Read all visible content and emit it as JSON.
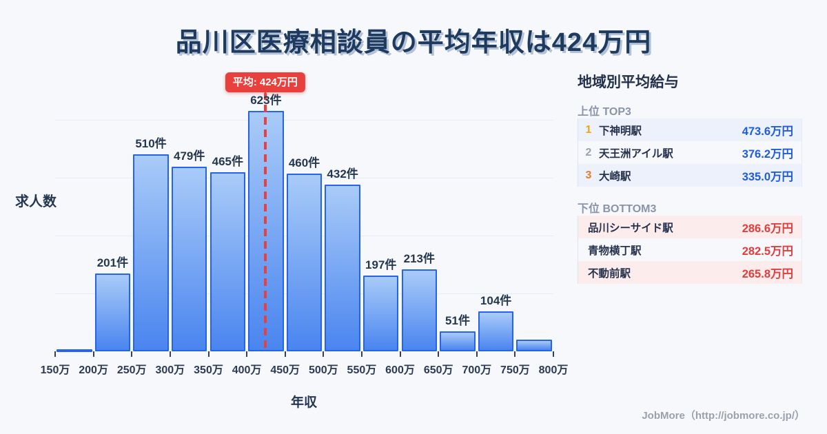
{
  "title": "品川区医療相談員の平均年収は424万円",
  "chart_data": {
    "type": "bar",
    "title": "品川区医療相談員の平均年収は424万円",
    "xlabel": "年収",
    "ylabel": "求人数",
    "unit_suffix": "件",
    "x_start": 150,
    "x_interval": 50,
    "x_tick_labels": [
      "150万",
      "200万",
      "250万",
      "300万",
      "350万",
      "400万",
      "450万",
      "500万",
      "550万",
      "600万",
      "650万",
      "700万",
      "750万",
      "800万"
    ],
    "bins": [
      {
        "range": [
          150,
          200
        ],
        "count": 5,
        "label": ""
      },
      {
        "range": [
          200,
          250
        ],
        "count": 201,
        "label": "201件"
      },
      {
        "range": [
          250,
          300
        ],
        "count": 510,
        "label": "510件"
      },
      {
        "range": [
          300,
          350
        ],
        "count": 479,
        "label": "479件"
      },
      {
        "range": [
          350,
          400
        ],
        "count": 465,
        "label": "465件"
      },
      {
        "range": [
          400,
          450
        ],
        "count": 623,
        "label": "623件"
      },
      {
        "range": [
          450,
          500
        ],
        "count": 460,
        "label": "460件"
      },
      {
        "range": [
          500,
          550
        ],
        "count": 432,
        "label": "432件"
      },
      {
        "range": [
          550,
          600
        ],
        "count": 197,
        "label": "197件"
      },
      {
        "range": [
          600,
          650
        ],
        "count": 213,
        "label": "213件"
      },
      {
        "range": [
          650,
          700
        ],
        "count": 51,
        "label": "51件"
      },
      {
        "range": [
          700,
          750
        ],
        "count": 104,
        "label": "104件"
      },
      {
        "range": [
          750,
          800
        ],
        "count": 30,
        "label": ""
      }
    ],
    "average": {
      "value": 424,
      "label": "平均: 424万円"
    },
    "ylim": [
      0,
      650
    ],
    "gridline_values": [
      150,
      300,
      450,
      600
    ],
    "grid": "horizontal"
  },
  "sidebar": {
    "title": "地域別平均給与",
    "top3": {
      "heading": "上位 TOP3",
      "rows": [
        {
          "rank": "1",
          "station": "下神明駅",
          "value": "473.6万円"
        },
        {
          "rank": "2",
          "station": "天王洲アイル駅",
          "value": "376.2万円"
        },
        {
          "rank": "3",
          "station": "大崎駅",
          "value": "335.0万円"
        }
      ],
      "rank_colors": [
        "#f0a60e",
        "#9aa2af",
        "#e07e2b"
      ],
      "value_color": "#1d5bdf",
      "row_highlight": "#ecf1fb"
    },
    "bottom3": {
      "heading": "下位 BOTTOM3",
      "rows": [
        {
          "station": "品川シーサイド駅",
          "value": "286.6万円"
        },
        {
          "station": "青物横丁駅",
          "value": "282.5万円"
        },
        {
          "station": "不動前駅",
          "value": "265.8万円"
        }
      ],
      "value_color": "#e23c3c",
      "row_highlight": "#fdecec"
    }
  },
  "footer": {
    "credit": "JobMore（http://jobmore.co.jp/）"
  },
  "colors": {
    "background": "#f7f8fb",
    "title_text": "#1f3a5f",
    "bar_border": "#2563eb",
    "bar_fill_top": "#a9cbf8",
    "bar_fill_bottom": "#4a85ef",
    "average_red": "#e8403d",
    "axis_text": "#2b3a55",
    "section_heading": "#8a94a8",
    "gridline": "#e7ebf3",
    "footer_text": "#9aa1ac"
  }
}
